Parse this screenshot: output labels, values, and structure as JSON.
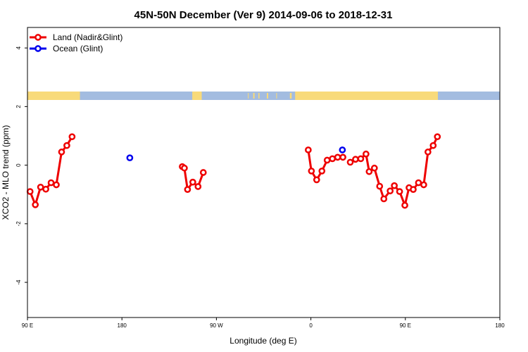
{
  "chart_data": {
    "type": "line",
    "title": "45N-50N December (Ver 9)   2014-09-06 to 2018-12-31",
    "xlabel": "Longitude (deg E)",
    "ylabel": "XCO2 - MLO trend (ppm)",
    "xticks": [
      {
        "value": 90,
        "label": "90 E"
      },
      {
        "value": 180,
        "label": "180"
      },
      {
        "value": 270,
        "label": "90 W"
      },
      {
        "value": 360,
        "label": "0"
      },
      {
        "value": 450,
        "label": "90 E"
      },
      {
        "value": 540,
        "label": "180"
      }
    ],
    "yticks": [
      {
        "value": -4,
        "label": "-4"
      },
      {
        "value": -2,
        "label": "-2"
      },
      {
        "value": 0,
        "label": "0"
      },
      {
        "value": 2,
        "label": "2"
      },
      {
        "value": 4,
        "label": "4"
      }
    ],
    "xlim": [
      90,
      540
    ],
    "ylim": [
      -5.2,
      4.7
    ],
    "grid": false,
    "legend_position": "top-left",
    "land_ocean_strip": {
      "land_color": "#F8DA7A",
      "ocean_color": "#A3BCE0"
    },
    "series": [
      {
        "name": "Land (Nadir&Glint)",
        "color": "#EE0000",
        "segments": [
          [
            [
              92.5,
              -0.9
            ],
            [
              97.5,
              -1.35
            ],
            [
              102.5,
              -0.75
            ],
            [
              107.5,
              -0.82
            ],
            [
              112.5,
              -0.6
            ],
            [
              117.5,
              -0.67
            ],
            [
              122.5,
              0.45
            ],
            [
              127.5,
              0.67
            ],
            [
              132.5,
              0.97
            ]
          ],
          [
            [
              237.5,
              -0.05
            ],
            [
              239.5,
              -0.1
            ],
            [
              242.5,
              -0.83
            ],
            [
              247.5,
              -0.58
            ],
            [
              252.5,
              -0.73
            ],
            [
              257.5,
              -0.25
            ]
          ],
          [
            [
              357.5,
              0.52
            ],
            [
              360.5,
              -0.2
            ],
            [
              365.5,
              -0.5
            ],
            [
              370.5,
              -0.2
            ],
            [
              375.5,
              0.17
            ],
            [
              380.5,
              0.22
            ],
            [
              385.5,
              0.27
            ],
            [
              390.5,
              0.27
            ]
          ],
          [
            [
              397.5,
              0.1
            ],
            [
              402.5,
              0.2
            ],
            [
              407.5,
              0.22
            ],
            [
              412.5,
              0.38
            ],
            [
              415.5,
              -0.22
            ],
            [
              420.5,
              -0.1
            ],
            [
              425.5,
              -0.72
            ],
            [
              429.5,
              -1.15
            ],
            [
              435.5,
              -0.88
            ],
            [
              439.5,
              -0.7
            ],
            [
              444.5,
              -0.9
            ],
            [
              449.5,
              -1.37
            ],
            [
              453.5,
              -0.77
            ],
            [
              457.5,
              -0.83
            ],
            [
              462.5,
              -0.6
            ],
            [
              467.5,
              -0.67
            ],
            [
              471.5,
              0.45
            ],
            [
              476.5,
              0.67
            ],
            [
              480.5,
              0.97
            ]
          ]
        ]
      },
      {
        "name": "Ocean (Glint)",
        "color": "#0000EE",
        "segments": [
          [
            [
              187.5,
              0.25
            ]
          ],
          [
            [
              390.0,
              0.52
            ]
          ]
        ]
      }
    ]
  }
}
